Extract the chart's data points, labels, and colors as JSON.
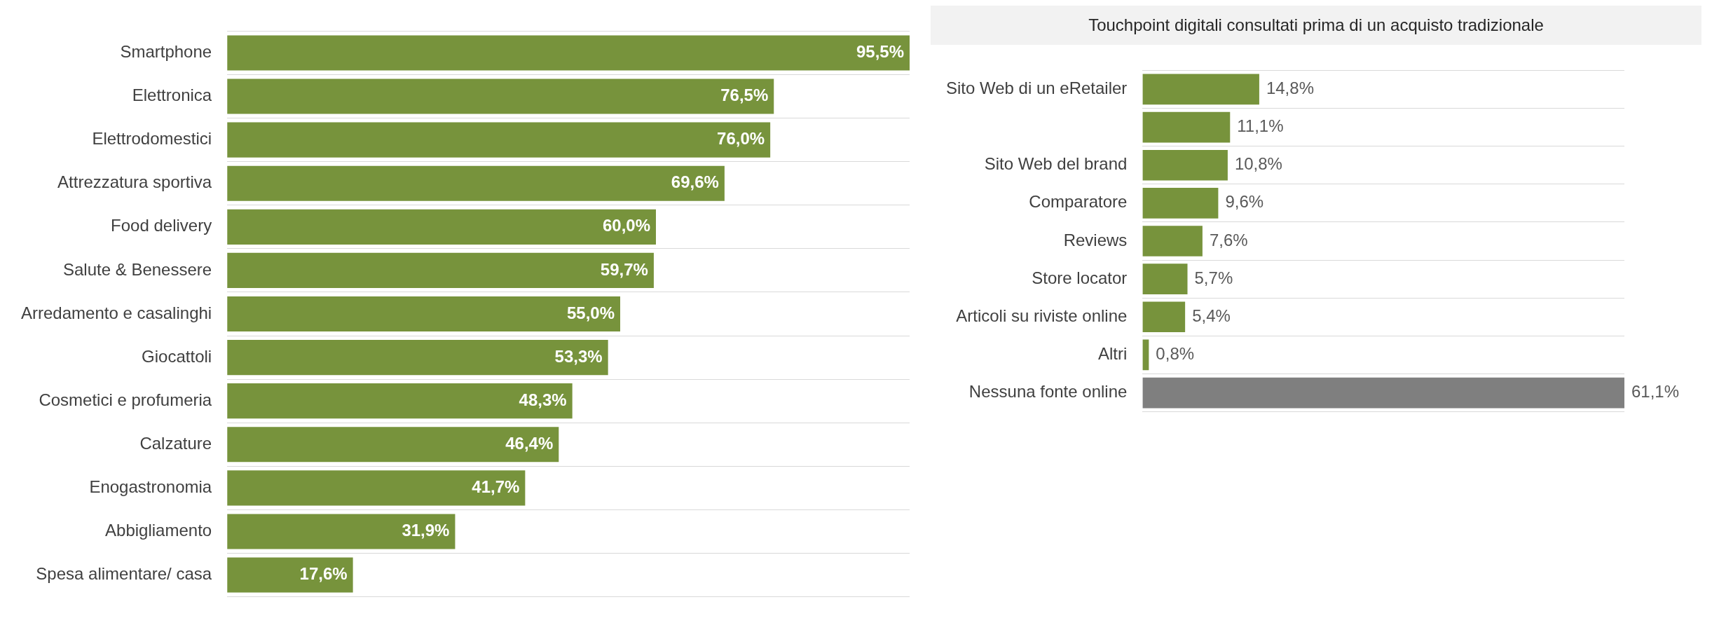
{
  "chart_data": [
    {
      "type": "bar",
      "orientation": "horizontal",
      "categories": [
        "Smartphone",
        "Elettronica",
        "Elettrodomestici",
        "Attrezzatura sportiva",
        "Food delivery",
        "Salute & Benessere",
        "Arredamento e casalinghi",
        "Giocattoli",
        "Cosmetici e profumeria",
        "Calzature",
        "Enogastronomia",
        "Abbigliamento",
        "Spesa alimentare/ casa"
      ],
      "values": [
        95.5,
        76.5,
        76.0,
        69.6,
        60.0,
        59.7,
        55.0,
        53.3,
        48.3,
        46.4,
        41.7,
        31.9,
        17.6
      ],
      "value_labels": [
        "95,5%",
        "76,5%",
        "76,0%",
        "69,6%",
        "60,0%",
        "59,7%",
        "55,0%",
        "53,3%",
        "48,3%",
        "46,4%",
        "41,7%",
        "31,9%",
        "17,6%"
      ],
      "color": "#77933c",
      "grid": "y",
      "legend": false
    },
    {
      "type": "bar",
      "orientation": "horizontal",
      "title": "Touchpoint digitali consultati prima di un acquisto tradizionale",
      "categories": [
        "Sito Web di un eRetailer",
        null,
        "Sito Web del brand",
        "Comparatore",
        "Reviews",
        "Store locator",
        "Articoli su riviste online",
        "Altri",
        "Nessuna fonte online"
      ],
      "values": [
        14.8,
        11.1,
        10.8,
        9.6,
        7.6,
        5.7,
        5.4,
        0.8,
        61.1
      ],
      "value_labels": [
        "14,8%",
        "11,1%",
        "10,8%",
        "9,6%",
        "7,6%",
        "5,7%",
        "5,4%",
        "0,8%",
        "61,1%"
      ],
      "colors": [
        "#77933c",
        "#77933c",
        "#77933c",
        "#77933c",
        "#77933c",
        "#77933c",
        "#77933c",
        "#77933c",
        "#7f7f7f"
      ],
      "grid": "y",
      "legend": false
    }
  ]
}
